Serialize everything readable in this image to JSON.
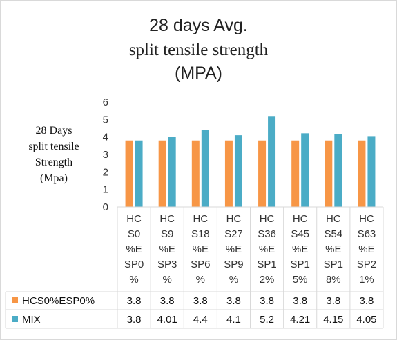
{
  "chart_data": {
    "type": "bar",
    "title_lines": [
      "28 days Avg.",
      "split tensile strength",
      "(MPA)"
    ],
    "ylabel_lines": [
      "28 Days",
      "split tensile",
      "Strength",
      "(Mpa)"
    ],
    "xlabel": "",
    "ylim": [
      0,
      6
    ],
    "yticks": [
      0,
      1,
      2,
      3,
      4,
      5,
      6
    ],
    "grid": false,
    "legend": "data-table",
    "categories": [
      [
        "HC",
        "S0",
        "%E",
        "SP0",
        "%"
      ],
      [
        "HC",
        "S9",
        "%E",
        "SP3",
        "%"
      ],
      [
        "HC",
        "S18",
        "%E",
        "SP6",
        "%"
      ],
      [
        "HC",
        "S27",
        "%E",
        "SP9",
        "%"
      ],
      [
        "HC",
        "S36",
        "%E",
        "SP1",
        "2%"
      ],
      [
        "HC",
        "S45",
        "%E",
        "SP1",
        "5%"
      ],
      [
        "HC",
        "S54",
        "%E",
        "SP1",
        "8%"
      ],
      [
        "HC",
        "S63",
        "%E",
        "SP2",
        "1%"
      ]
    ],
    "series": [
      {
        "name": "HCS0%ESP0%",
        "color": "#f79646",
        "values": [
          3.8,
          3.8,
          3.8,
          3.8,
          3.8,
          3.8,
          3.8,
          3.8
        ],
        "labels": [
          "3.8",
          "3.8",
          "3.8",
          "3.8",
          "3.8",
          "3.8",
          "3.8",
          "3.8"
        ]
      },
      {
        "name": "MIX",
        "color": "#4bacc6",
        "values": [
          3.8,
          4.01,
          4.4,
          4.1,
          5.2,
          4.21,
          4.15,
          4.05
        ],
        "labels": [
          "3.8",
          "4.01",
          "4.4",
          "4.1",
          "5.2",
          "4.21",
          "4.15",
          "4.05"
        ]
      }
    ]
  }
}
